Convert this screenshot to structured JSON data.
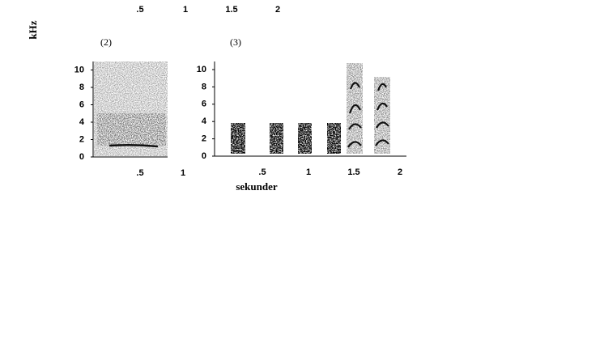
{
  "top_axis": {
    "labels": [
      ".5",
      "1",
      "1.5",
      "2"
    ]
  },
  "y_axis_title": "kHz",
  "panels": [
    {
      "label": "(2)",
      "yticks": [
        "0",
        "2",
        "4",
        "6",
        "8",
        "10"
      ],
      "xticks": [
        ".5",
        "1"
      ]
    },
    {
      "label": "(3)",
      "yticks": [
        "0",
        "2",
        "4",
        "6",
        "8",
        "10"
      ],
      "xticks": [
        ".5",
        "1",
        "1.5",
        "2"
      ],
      "x_axis_title": "sekunder"
    }
  ]
}
